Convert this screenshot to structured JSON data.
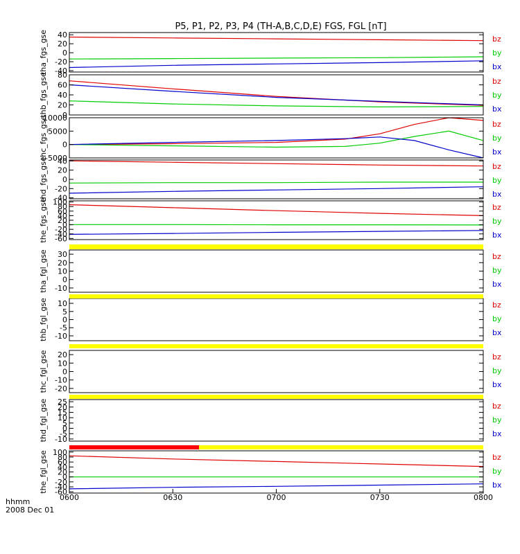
{
  "title": "P5, P1, P2, P3, P4 (TH-A,B,C,D,E) FGS, FGL [nT]",
  "footer": {
    "line1": "hhmm",
    "line2": "2008 Dec 01"
  },
  "colors": {
    "bz": "#e00000",
    "by": "#00cc00",
    "bx": "#0000cc",
    "status_bar": "#ffff00",
    "status_bar_flag": "#ff0000",
    "axis": "#000000"
  },
  "legend": [
    "bz",
    "by",
    "bx"
  ],
  "x_axis": {
    "ticks": [
      "0600",
      "0630",
      "0700",
      "0730",
      "0800"
    ],
    "range_minutes": [
      0,
      120
    ]
  },
  "chart_data": [
    {
      "type": "line",
      "ylabel": "tha_fgs_gse",
      "yticks": [
        40,
        20,
        0,
        -20,
        -40
      ],
      "ylim": [
        -43,
        45
      ],
      "grid": false,
      "series": [
        {
          "name": "bz",
          "x": [
            0,
            30,
            60,
            90,
            120
          ],
          "values": [
            35,
            33,
            31,
            29,
            27
          ]
        },
        {
          "name": "by",
          "x": [
            0,
            30,
            60,
            90,
            120
          ],
          "values": [
            -14,
            -13,
            -12,
            -11,
            -9
          ]
        },
        {
          "name": "bx",
          "x": [
            0,
            30,
            60,
            90,
            120
          ],
          "values": [
            -33,
            -28,
            -25,
            -22,
            -18
          ]
        }
      ]
    },
    {
      "type": "line",
      "ylabel": "thb_fgs_gse",
      "yticks": [
        80,
        60,
        40,
        20,
        0
      ],
      "ylim": [
        0,
        80
      ],
      "grid": false,
      "series": [
        {
          "name": "bz",
          "x": [
            0,
            30,
            60,
            90,
            120
          ],
          "values": [
            68,
            52,
            37,
            26,
            19
          ]
        },
        {
          "name": "by",
          "x": [
            0,
            30,
            60,
            90,
            120
          ],
          "values": [
            28,
            22,
            18,
            16,
            17
          ]
        },
        {
          "name": "bx",
          "x": [
            0,
            30,
            60,
            90,
            120
          ],
          "values": [
            60,
            47,
            35,
            27,
            20
          ]
        }
      ]
    },
    {
      "type": "line",
      "ylabel": "thc_fgs_gse",
      "yticks": [
        10000,
        5000,
        0,
        -5000
      ],
      "ylim": [
        -5000,
        10000
      ],
      "grid": false,
      "series": [
        {
          "name": "bz",
          "x": [
            0,
            30,
            60,
            80,
            90,
            100,
            110,
            120
          ],
          "values": [
            0,
            300,
            800,
            2000,
            4000,
            7500,
            10000,
            9000
          ]
        },
        {
          "name": "by",
          "x": [
            0,
            30,
            60,
            80,
            90,
            100,
            110,
            120
          ],
          "values": [
            0,
            -500,
            -1000,
            -700,
            500,
            3000,
            5000,
            1500
          ]
        },
        {
          "name": "bx",
          "x": [
            0,
            30,
            60,
            80,
            90,
            100,
            110,
            120
          ],
          "values": [
            0,
            800,
            1500,
            2200,
            2800,
            1500,
            -2000,
            -5000
          ]
        }
      ]
    },
    {
      "type": "line",
      "ylabel": "thd_fgs_gse",
      "yticks": [
        40,
        20,
        0,
        -20,
        -40
      ],
      "ylim": [
        -42,
        42
      ],
      "grid": false,
      "series": [
        {
          "name": "bz",
          "x": [
            0,
            30,
            60,
            90,
            120
          ],
          "values": [
            40,
            37,
            34,
            31,
            29
          ]
        },
        {
          "name": "by",
          "x": [
            0,
            30,
            60,
            90,
            120
          ],
          "values": [
            -8,
            -7,
            -7,
            -6,
            -6
          ]
        },
        {
          "name": "bx",
          "x": [
            0,
            30,
            60,
            90,
            120
          ],
          "values": [
            -30,
            -26,
            -23,
            -20,
            -16
          ]
        }
      ]
    },
    {
      "type": "line",
      "ylabel": "the_fgs_gse",
      "yticks": [
        100,
        80,
        60,
        40,
        20,
        0,
        -20,
        -40,
        -60
      ],
      "ylim": [
        -65,
        105
      ],
      "grid": false,
      "series": [
        {
          "name": "bz",
          "x": [
            0,
            30,
            60,
            90,
            120
          ],
          "values": [
            88,
            75,
            62,
            50,
            40
          ]
        },
        {
          "name": "by",
          "x": [
            0,
            30,
            60,
            90,
            120
          ],
          "values": [
            1,
            1,
            0,
            0,
            -1
          ]
        },
        {
          "name": "bx",
          "x": [
            0,
            30,
            60,
            90,
            120
          ],
          "values": [
            -42,
            -38,
            -33,
            -29,
            -25
          ]
        }
      ]
    },
    {
      "type": "line",
      "ylabel": "tha_fgl_gse",
      "yticks": [
        30,
        20,
        10,
        0,
        -10
      ],
      "ylim": [
        -15,
        35
      ],
      "grid": false,
      "series": []
    },
    {
      "type": "line",
      "ylabel": "thb_fgl_gse",
      "yticks": [
        10,
        5,
        0,
        -5,
        -10
      ],
      "ylim": [
        -13,
        13
      ],
      "grid": false,
      "series": []
    },
    {
      "type": "line",
      "ylabel": "thc_fgl_gse",
      "yticks": [
        20,
        10,
        0,
        -10,
        -20
      ],
      "ylim": [
        -25,
        25
      ],
      "grid": false,
      "series": []
    },
    {
      "type": "line",
      "ylabel": "thd_fgl_gse",
      "yticks": [
        25,
        20,
        15,
        10,
        5,
        0,
        -5,
        -10
      ],
      "ylim": [
        -12,
        27
      ],
      "grid": false,
      "series": []
    },
    {
      "type": "line",
      "ylabel": "the_fgl_gse",
      "yticks": [
        100,
        80,
        60,
        40,
        20,
        0,
        -20,
        -40,
        -60
      ],
      "ylim": [
        -65,
        105
      ],
      "grid": false,
      "series": [
        {
          "name": "bz",
          "x": [
            0,
            30,
            60,
            90,
            120
          ],
          "values": [
            85,
            72,
            62,
            52,
            42
          ]
        },
        {
          "name": "by",
          "x": [
            0,
            30,
            60,
            90,
            120
          ],
          "values": [
            0,
            0,
            0,
            0,
            0
          ]
        },
        {
          "name": "bx",
          "x": [
            0,
            30,
            60,
            90,
            120
          ],
          "values": [
            -48,
            -42,
            -38,
            -33,
            -28
          ]
        }
      ]
    }
  ]
}
